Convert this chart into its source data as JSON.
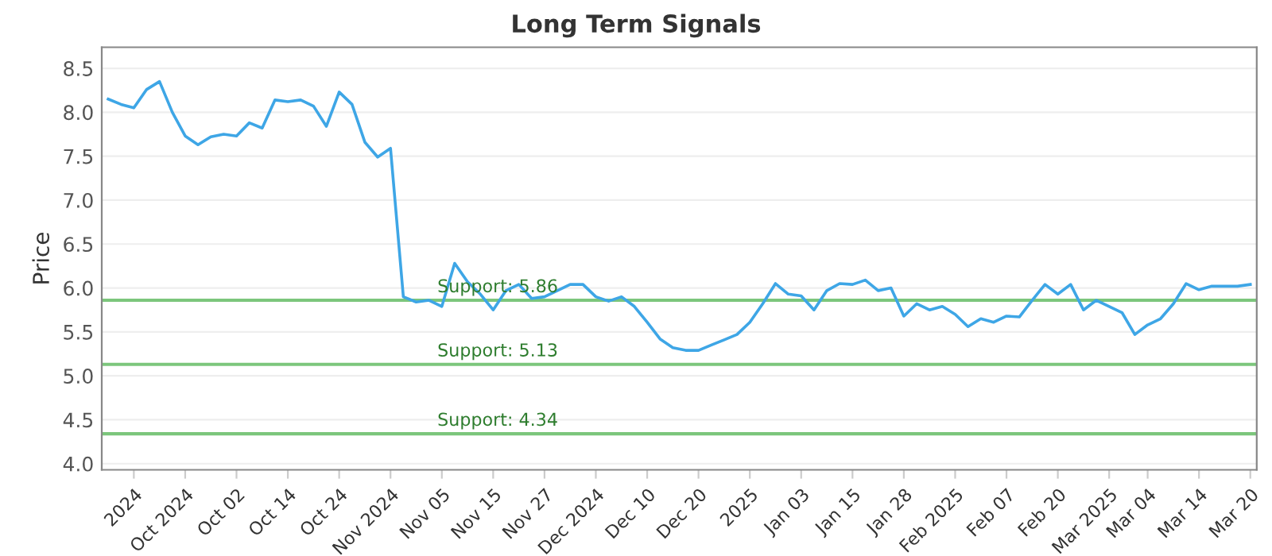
{
  "chart_data": {
    "type": "line",
    "title": "Long Term Signals",
    "ylabel": "Price",
    "categories": [
      null,
      null,
      "2024",
      null,
      null,
      null,
      "Oct 2024",
      null,
      null,
      null,
      "Oct 02",
      null,
      null,
      null,
      "Oct 14",
      null,
      null,
      null,
      "Oct 24",
      null,
      null,
      null,
      "Nov 2024",
      null,
      null,
      null,
      "Nov 05",
      null,
      null,
      null,
      "Nov 15",
      null,
      null,
      null,
      "Nov 27",
      null,
      null,
      null,
      "Dec 2024",
      null,
      null,
      null,
      "Dec 10",
      null,
      null,
      null,
      "Dec 20",
      null,
      null,
      null,
      "2025",
      null,
      null,
      null,
      "Jan 03",
      null,
      null,
      null,
      "Jan 15",
      null,
      null,
      null,
      "Jan 28",
      null,
      null,
      null,
      "Feb 2025",
      null,
      null,
      null,
      "Feb 07",
      null,
      null,
      null,
      "Feb 20",
      null,
      null,
      null,
      "Mar 2025",
      null,
      null,
      "Mar 04",
      null,
      null,
      null,
      "Mar 14",
      null,
      null,
      null,
      "Mar 20"
    ],
    "series": [
      {
        "color": "#3ea6e6",
        "values": [
          8.15,
          8.09,
          8.05,
          8.26,
          8.35,
          8.0,
          7.73,
          7.63,
          7.72,
          7.75,
          7.73,
          7.88,
          7.82,
          8.14,
          8.12,
          8.14,
          8.07,
          7.84,
          8.23,
          8.09,
          7.66,
          7.49,
          7.59,
          5.9,
          5.84,
          5.86,
          5.79,
          6.28,
          6.07,
          5.93,
          5.75,
          5.97,
          6.04,
          5.88,
          5.9,
          5.97,
          6.04,
          6.04,
          5.9,
          5.85,
          5.9,
          5.79,
          5.61,
          5.42,
          5.32,
          5.29,
          5.29,
          5.35,
          5.41,
          5.47,
          5.61,
          5.82,
          6.05,
          5.93,
          5.91,
          5.75,
          5.97,
          6.05,
          6.04,
          6.09,
          5.97,
          6.0,
          5.68,
          5.82,
          5.75,
          5.79,
          5.7,
          5.56,
          5.65,
          5.61,
          5.68,
          5.67,
          5.86,
          6.04,
          5.93,
          6.04,
          5.75,
          5.86,
          5.79,
          5.72,
          5.47,
          5.58,
          5.65,
          5.82,
          6.05,
          5.98,
          6.02,
          6.02,
          6.02,
          6.04
        ]
      }
    ],
    "ylim": [
      3.93,
      8.74
    ],
    "yticks": [
      {
        "value": 4.0,
        "label": "4.0"
      },
      {
        "value": 4.5,
        "label": "4.5"
      },
      {
        "value": 5.0,
        "label": "5.0"
      },
      {
        "value": 5.5,
        "label": "5.5"
      },
      {
        "value": 6.0,
        "label": "6.0"
      },
      {
        "value": 6.5,
        "label": "6.5"
      },
      {
        "value": 7.0,
        "label": "7.0"
      },
      {
        "value": 7.5,
        "label": "7.5"
      },
      {
        "value": 8.0,
        "label": "8.0"
      },
      {
        "value": 8.5,
        "label": "8.5"
      }
    ],
    "grid": "y",
    "legend": false,
    "marker": "none",
    "line_style": "solid",
    "ref_lines": [
      {
        "axis": "y",
        "value": 5.86,
        "label": "Support: 5.86",
        "color": "#7cc67c"
      },
      {
        "axis": "y",
        "value": 5.13,
        "label": "Support: 5.13",
        "color": "#7cc67c"
      },
      {
        "axis": "y",
        "value": 4.34,
        "label": "Support: 4.34",
        "color": "#7cc67c"
      }
    ]
  }
}
